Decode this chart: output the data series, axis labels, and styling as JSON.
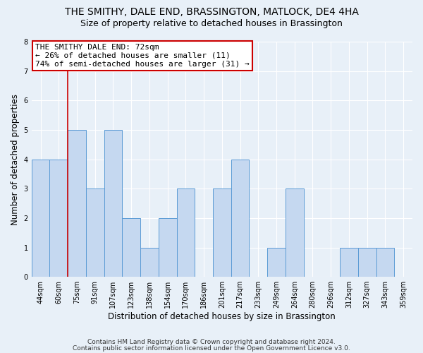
{
  "title_line1": "THE SMITHY, DALE END, BRASSINGTON, MATLOCK, DE4 4HA",
  "title_line2": "Size of property relative to detached houses in Brassington",
  "xlabel": "Distribution of detached houses by size in Brassington",
  "ylabel": "Number of detached properties",
  "categories": [
    "44sqm",
    "60sqm",
    "75sqm",
    "91sqm",
    "107sqm",
    "123sqm",
    "138sqm",
    "154sqm",
    "170sqm",
    "186sqm",
    "201sqm",
    "217sqm",
    "233sqm",
    "249sqm",
    "264sqm",
    "280sqm",
    "296sqm",
    "312sqm",
    "327sqm",
    "343sqm",
    "359sqm"
  ],
  "values": [
    4,
    4,
    5,
    3,
    5,
    2,
    1,
    2,
    3,
    0,
    3,
    4,
    0,
    1,
    3,
    0,
    0,
    1,
    1,
    1,
    0
  ],
  "bar_color": "#c5d8f0",
  "bar_edge_color": "#5b9bd5",
  "annotation_line1": "THE SMITHY DALE END: 72sqm",
  "annotation_line2": "← 26% of detached houses are smaller (11)",
  "annotation_line3": "74% of semi-detached houses are larger (31) →",
  "vline_color": "#cc0000",
  "annotation_box_color": "#ffffff",
  "annotation_box_edge": "#cc0000",
  "ylim": [
    0,
    8
  ],
  "yticks": [
    0,
    1,
    2,
    3,
    4,
    5,
    6,
    7,
    8
  ],
  "footer_line1": "Contains HM Land Registry data © Crown copyright and database right 2024.",
  "footer_line2": "Contains public sector information licensed under the Open Government Licence v3.0.",
  "background_color": "#e8f0f8",
  "plot_bg_color": "#e8f0f8",
  "grid_color": "#ffffff",
  "title_fontsize": 10,
  "subtitle_fontsize": 9,
  "axis_label_fontsize": 8.5,
  "tick_fontsize": 7,
  "footer_fontsize": 6.5,
  "annotation_fontsize": 8
}
